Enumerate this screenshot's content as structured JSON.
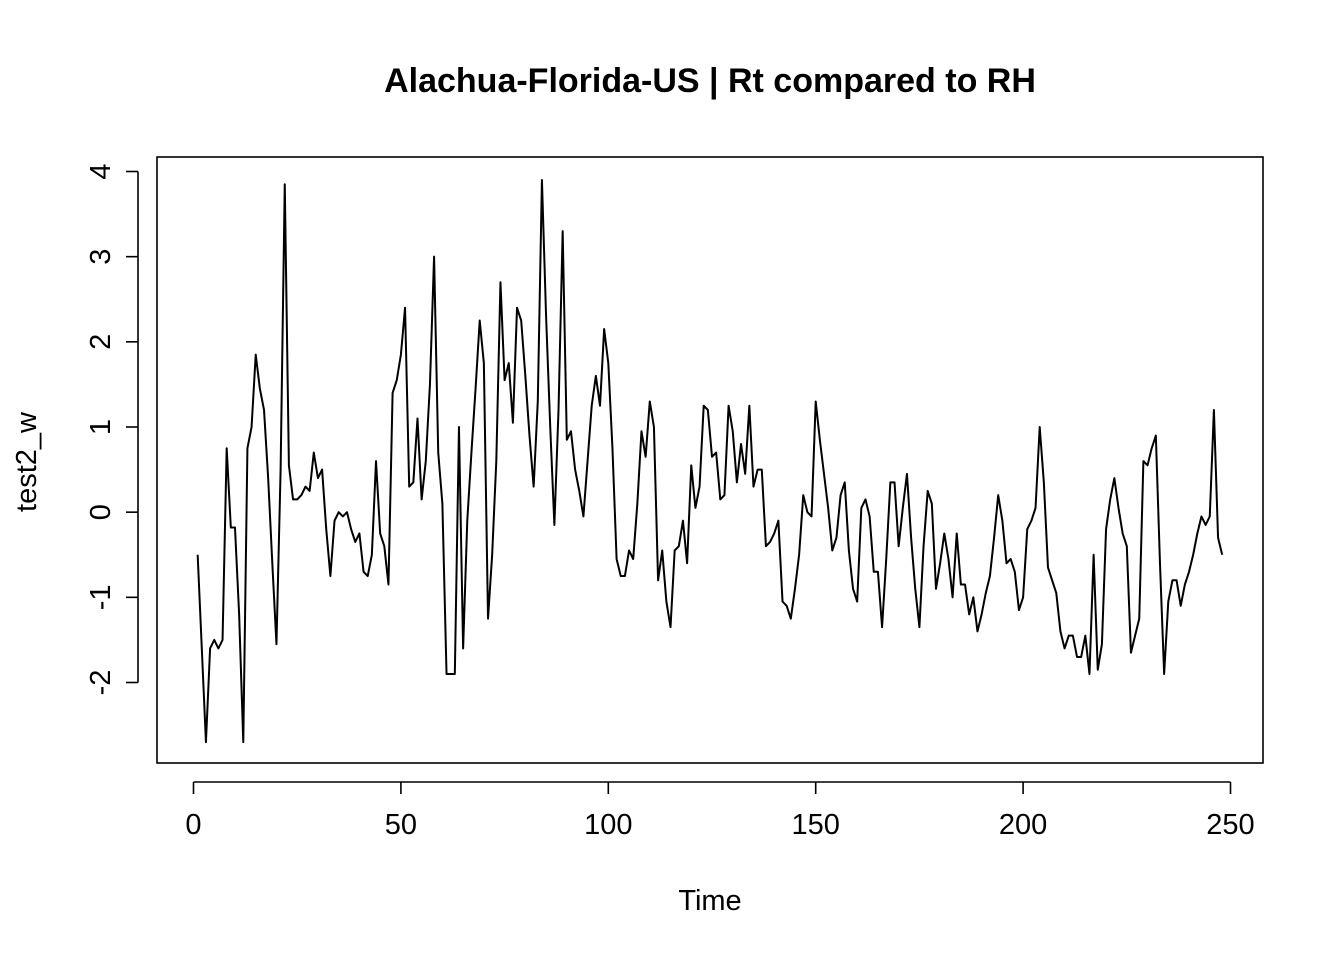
{
  "chart_data": {
    "type": "line",
    "title": "Alachua-Florida-US | Rt compared to RH",
    "xlabel": "Time",
    "ylabel": "test2_w",
    "xlim": [
      0,
      250
    ],
    "ylim": [
      -2.7,
      3.9
    ],
    "xticks": [
      0,
      50,
      100,
      150,
      200,
      250
    ],
    "yticks": [
      -2,
      -1,
      0,
      1,
      2,
      3,
      4
    ],
    "grid": false,
    "color": "#000000",
    "series": [
      {
        "x_start": 1,
        "x_step": 1,
        "values": [
          -0.5,
          -1.6,
          -2.7,
          -1.6,
          -1.5,
          -1.6,
          -1.5,
          0.75,
          -0.18,
          -0.18,
          -1.2,
          -2.7,
          0.75,
          1.0,
          1.85,
          1.45,
          1.2,
          0.4,
          -0.6,
          -1.55,
          0.5,
          3.85,
          0.55,
          0.15,
          0.15,
          0.2,
          0.3,
          0.25,
          0.7,
          0.4,
          0.5,
          -0.2,
          -0.75,
          -0.1,
          0.0,
          -0.05,
          0.0,
          -0.2,
          -0.35,
          -0.25,
          -0.7,
          -0.75,
          -0.5,
          0.6,
          -0.25,
          -0.4,
          -0.85,
          1.4,
          1.55,
          1.85,
          2.4,
          0.3,
          0.35,
          1.1,
          0.15,
          0.6,
          1.5,
          3.0,
          0.7,
          0.1,
          -1.9,
          -1.9,
          -1.9,
          1.0,
          -1.6,
          -0.1,
          0.7,
          1.45,
          2.25,
          1.75,
          -1.25,
          -0.5,
          0.6,
          2.7,
          1.55,
          1.75,
          1.05,
          2.4,
          2.25,
          1.6,
          0.9,
          0.3,
          1.3,
          3.9,
          2.3,
          1.0,
          -0.15,
          1.2,
          3.3,
          0.85,
          0.95,
          0.5,
          0.25,
          -0.05,
          0.6,
          1.25,
          1.6,
          1.25,
          2.15,
          1.75,
          0.75,
          -0.55,
          -0.75,
          -0.75,
          -0.45,
          -0.55,
          0.1,
          0.95,
          0.65,
          1.3,
          1.0,
          -0.8,
          -0.45,
          -1.05,
          -1.35,
          -0.45,
          -0.4,
          -0.1,
          -0.6,
          0.55,
          0.05,
          0.3,
          1.25,
          1.2,
          0.65,
          0.7,
          0.15,
          0.2,
          1.25,
          0.95,
          0.35,
          0.8,
          0.45,
          1.25,
          0.3,
          0.5,
          0.5,
          -0.4,
          -0.35,
          -0.25,
          -0.1,
          -1.05,
          -1.1,
          -1.25,
          -0.9,
          -0.5,
          0.2,
          0.0,
          -0.05,
          1.3,
          0.85,
          0.45,
          0.05,
          -0.45,
          -0.3,
          0.2,
          0.35,
          -0.45,
          -0.9,
          -1.05,
          0.05,
          0.15,
          -0.05,
          -0.7,
          -0.7,
          -1.35,
          -0.55,
          0.35,
          0.35,
          -0.4,
          0.05,
          0.45,
          -0.3,
          -0.9,
          -1.35,
          -0.4,
          0.25,
          0.1,
          -0.9,
          -0.6,
          -0.25,
          -0.55,
          -1.0,
          -0.25,
          -0.85,
          -0.85,
          -1.2,
          -1.0,
          -1.4,
          -1.2,
          -0.95,
          -0.75,
          -0.3,
          0.2,
          -0.1,
          -0.6,
          -0.55,
          -0.7,
          -1.15,
          -1.0,
          -0.2,
          -0.1,
          0.05,
          1.0,
          0.35,
          -0.65,
          -0.8,
          -0.95,
          -1.4,
          -1.6,
          -1.45,
          -1.45,
          -1.7,
          -1.7,
          -1.45,
          -1.9,
          -0.5,
          -1.85,
          -1.55,
          -0.2,
          0.15,
          0.4,
          0.05,
          -0.25,
          -0.4,
          -1.65,
          -1.45,
          -1.25,
          0.6,
          0.55,
          0.75,
          0.9,
          -0.6,
          -1.9,
          -1.05,
          -0.8,
          -0.8,
          -1.1,
          -0.85,
          -0.7,
          -0.5,
          -0.25,
          -0.05,
          -0.15,
          -0.05,
          1.2,
          -0.3,
          -0.5
        ]
      }
    ]
  }
}
